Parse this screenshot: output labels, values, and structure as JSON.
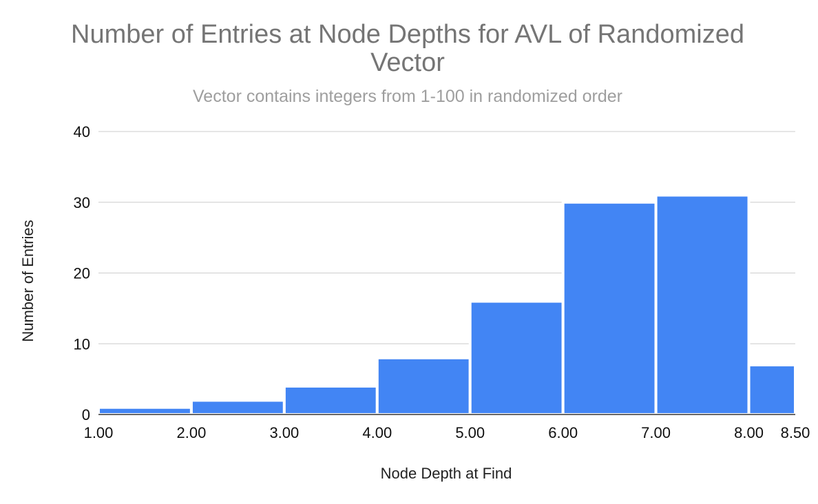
{
  "chart_data": {
    "type": "bar",
    "title": "Number of Entries at Node Depths for AVL of Randomized Vector",
    "subtitle": "Vector contains integers from 1-100 in randomized order",
    "xlabel": "Node Depth at Find",
    "ylabel": "Number of Entries",
    "x_ticks": [
      "1.00",
      "2.00",
      "3.00",
      "4.00",
      "5.00",
      "6.00",
      "7.00",
      "8.00",
      "8.50"
    ],
    "y_ticks": [
      "0",
      "10",
      "20",
      "30",
      "40"
    ],
    "xlim": [
      1,
      8.5
    ],
    "ylim": [
      0,
      40
    ],
    "grid": true,
    "bins": [
      {
        "start": 1,
        "end": 2,
        "value": 1
      },
      {
        "start": 2,
        "end": 3,
        "value": 2
      },
      {
        "start": 3,
        "end": 4,
        "value": 4
      },
      {
        "start": 4,
        "end": 5,
        "value": 8
      },
      {
        "start": 5,
        "end": 6,
        "value": 16
      },
      {
        "start": 6,
        "end": 7,
        "value": 30
      },
      {
        "start": 7,
        "end": 8,
        "value": 31
      },
      {
        "start": 8,
        "end": 8.5,
        "value": 7
      }
    ],
    "bar_color": "#4285f4"
  }
}
